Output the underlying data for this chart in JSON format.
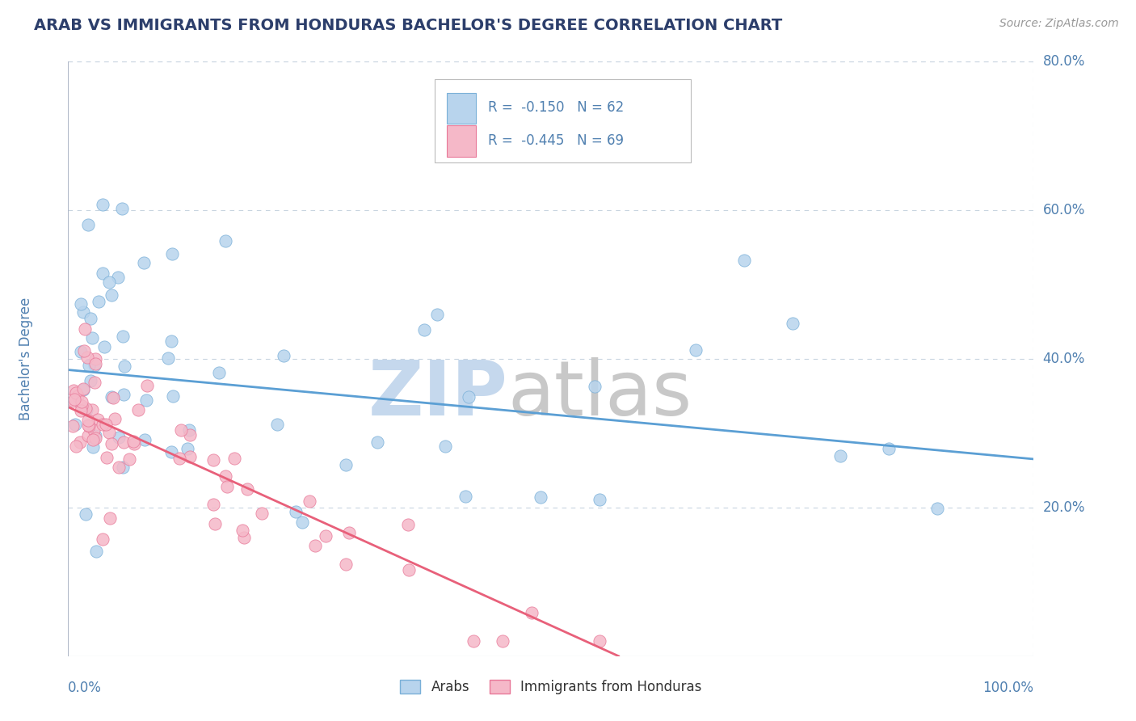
{
  "title": "ARAB VS IMMIGRANTS FROM HONDURAS BACHELOR'S DEGREE CORRELATION CHART",
  "source": "Source: ZipAtlas.com",
  "ylabel": "Bachelor's Degree",
  "legend_arab": "Arabs",
  "legend_honduran": "Immigrants from Honduras",
  "R_arab": -0.15,
  "N_arab": 62,
  "R_honduran": -0.445,
  "N_honduran": 69,
  "arab_color": "#b8d4ed",
  "honduran_color": "#f5b8c8",
  "arab_edge_color": "#7ab0d8",
  "honduran_edge_color": "#e87898",
  "arab_line_color": "#5b9fd4",
  "honduran_line_color": "#e8607a",
  "watermark_zip_color": "#c5d8ed",
  "watermark_atlas_color": "#c8c8c8",
  "xlim": [
    0,
    100
  ],
  "ylim": [
    0,
    80
  ],
  "ytick_vals": [
    20,
    40,
    60,
    80
  ],
  "ytick_labels": [
    "20.0%",
    "40.0%",
    "60.0%",
    "80.0%"
  ],
  "grid_color": "#c8d4e0",
  "background_color": "#ffffff",
  "title_color": "#2c3e6b",
  "axis_label_color": "#5080b0",
  "source_color": "#999999",
  "arab_line_x0": 0,
  "arab_line_y0": 38.5,
  "arab_line_x1": 100,
  "arab_line_y1": 26.5,
  "hond_line_x0": 0,
  "hond_line_y0": 33.5,
  "hond_line_x1": 57,
  "hond_line_y1": 0
}
